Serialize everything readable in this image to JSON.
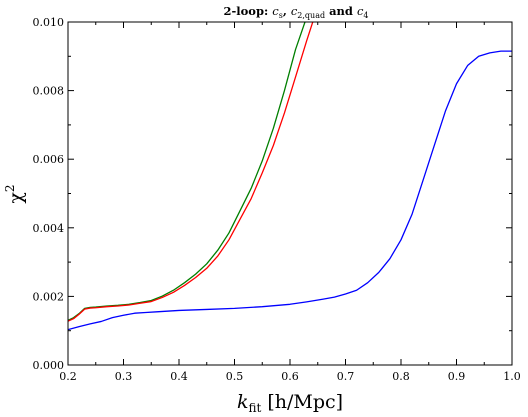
{
  "chart_data": {
    "type": "line",
    "title": "2-loop: c_s, c_2,quad and c_4",
    "title_parts": {
      "prefix": "2-loop: ",
      "cs_base": "c",
      "cs_sub": "s",
      "sep1": ", ",
      "c2_base": "c",
      "c2_sub": "2,quad",
      "sep2": " and ",
      "c4_base": "c",
      "c4_sub": "4"
    },
    "xlabel": {
      "main": "k",
      "sub": "fit",
      "rest": " [h/Mpc]"
    },
    "ylabel": {
      "main": "χ",
      "sup": "2"
    },
    "xlim": [
      0.2,
      1.0
    ],
    "ylim": [
      0.0,
      0.01
    ],
    "x_ticks": [
      "0.2",
      "0.3",
      "0.4",
      "0.5",
      "0.6",
      "0.7",
      "0.8",
      "0.9",
      "1.0"
    ],
    "y_ticks": [
      "0.000",
      "0.002",
      "0.004",
      "0.006",
      "0.008",
      "0.010"
    ],
    "grid": false,
    "legend": "none",
    "series": [
      {
        "color": "#007f00",
        "points": [
          [
            0.2,
            0.0013
          ],
          [
            0.21,
            0.00138
          ],
          [
            0.22,
            0.0015
          ],
          [
            0.23,
            0.00165
          ],
          [
            0.24,
            0.00168
          ],
          [
            0.25,
            0.00169
          ],
          [
            0.27,
            0.00172
          ],
          [
            0.29,
            0.00174
          ],
          [
            0.31,
            0.00177
          ],
          [
            0.33,
            0.00182
          ],
          [
            0.35,
            0.00188
          ],
          [
            0.37,
            0.00201
          ],
          [
            0.39,
            0.00218
          ],
          [
            0.41,
            0.0024
          ],
          [
            0.43,
            0.00265
          ],
          [
            0.45,
            0.00295
          ],
          [
            0.47,
            0.00335
          ],
          [
            0.49,
            0.00385
          ],
          [
            0.51,
            0.0045
          ],
          [
            0.53,
            0.00515
          ],
          [
            0.55,
            0.00595
          ],
          [
            0.57,
            0.0069
          ],
          [
            0.59,
            0.008
          ],
          [
            0.61,
            0.0092
          ],
          [
            0.627,
            0.01
          ]
        ]
      },
      {
        "color": "#ff0000",
        "points": [
          [
            0.2,
            0.00128
          ],
          [
            0.21,
            0.00135
          ],
          [
            0.22,
            0.00148
          ],
          [
            0.23,
            0.00163
          ],
          [
            0.24,
            0.00166
          ],
          [
            0.25,
            0.00167
          ],
          [
            0.27,
            0.0017
          ],
          [
            0.29,
            0.00172
          ],
          [
            0.31,
            0.00175
          ],
          [
            0.33,
            0.0018
          ],
          [
            0.35,
            0.00185
          ],
          [
            0.37,
            0.00197
          ],
          [
            0.39,
            0.00212
          ],
          [
            0.41,
            0.00232
          ],
          [
            0.43,
            0.00255
          ],
          [
            0.45,
            0.00282
          ],
          [
            0.47,
            0.00318
          ],
          [
            0.49,
            0.00365
          ],
          [
            0.51,
            0.00425
          ],
          [
            0.53,
            0.00485
          ],
          [
            0.55,
            0.0056
          ],
          [
            0.57,
            0.0064
          ],
          [
            0.59,
            0.00735
          ],
          [
            0.61,
            0.0084
          ],
          [
            0.63,
            0.00945
          ],
          [
            0.641,
            0.01
          ]
        ]
      },
      {
        "color": "#0000ff",
        "points": [
          [
            0.2,
            0.00103
          ],
          [
            0.22,
            0.00112
          ],
          [
            0.24,
            0.0012
          ],
          [
            0.26,
            0.00127
          ],
          [
            0.28,
            0.00138
          ],
          [
            0.3,
            0.00145
          ],
          [
            0.32,
            0.00151
          ],
          [
            0.34,
            0.00153
          ],
          [
            0.36,
            0.00155
          ],
          [
            0.4,
            0.00159
          ],
          [
            0.45,
            0.00162
          ],
          [
            0.5,
            0.00165
          ],
          [
            0.55,
            0.0017
          ],
          [
            0.6,
            0.00177
          ],
          [
            0.63,
            0.00184
          ],
          [
            0.66,
            0.00192
          ],
          [
            0.68,
            0.00198
          ],
          [
            0.7,
            0.00207
          ],
          [
            0.72,
            0.00218
          ],
          [
            0.74,
            0.0024
          ],
          [
            0.76,
            0.0027
          ],
          [
            0.78,
            0.0031
          ],
          [
            0.8,
            0.00365
          ],
          [
            0.82,
            0.0044
          ],
          [
            0.84,
            0.0054
          ],
          [
            0.86,
            0.0064
          ],
          [
            0.88,
            0.0074
          ],
          [
            0.9,
            0.0082
          ],
          [
            0.92,
            0.00873
          ],
          [
            0.94,
            0.009
          ],
          [
            0.96,
            0.0091
          ],
          [
            0.98,
            0.00915
          ],
          [
            1.0,
            0.00915
          ]
        ]
      }
    ]
  }
}
